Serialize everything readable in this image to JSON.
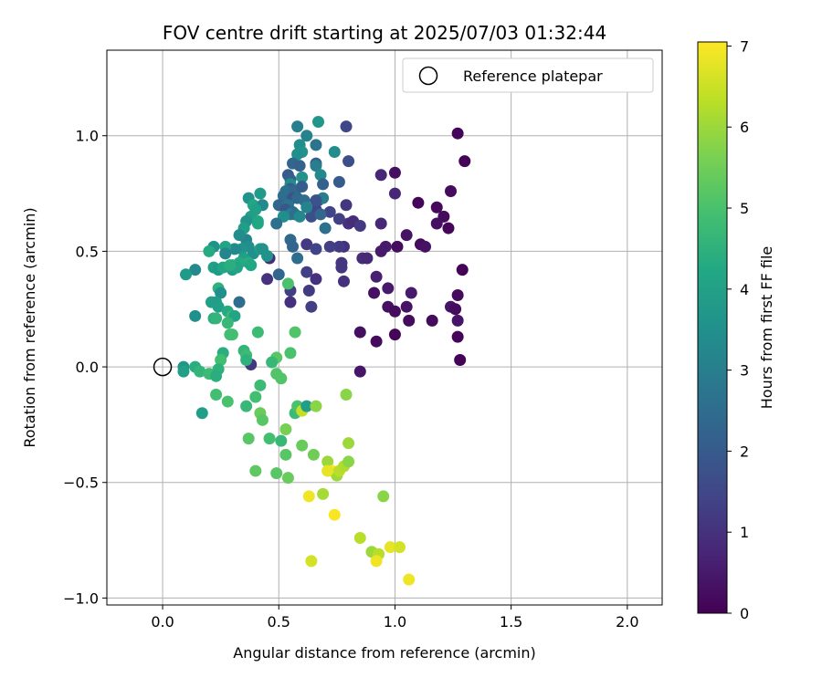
{
  "chart_data": {
    "type": "scatter",
    "title": "FOV centre drift starting at 2025/07/03 01:32:44",
    "xlabel": "Angular distance from reference (arcmin)",
    "ylabel": "Rotation from reference (arcmin)",
    "xlim": [
      -0.24,
      2.15
    ],
    "ylim": [
      -1.03,
      1.37
    ],
    "xticks": [
      0.0,
      0.5,
      1.0,
      1.5,
      2.0
    ],
    "xtick_labels": [
      "0.0",
      "0.5",
      "1.0",
      "1.5",
      "2.0"
    ],
    "yticks": [
      -1.0,
      -0.5,
      0.0,
      0.5,
      1.0
    ],
    "ytick_labels": [
      "−1.0",
      "−0.5",
      "0.0",
      "0.5",
      "1.0"
    ],
    "grid": true,
    "legend": {
      "placement": "top-right",
      "label": "Reference platepar"
    },
    "reference_marker": {
      "x": 0.0,
      "y": 0.0,
      "style": "open-circle"
    },
    "colorbar": {
      "label": "Hours from first FF file",
      "range": [
        0,
        7.05
      ],
      "ticks": [
        0,
        1,
        2,
        3,
        4,
        5,
        6,
        7
      ],
      "tick_labels": [
        "0",
        "1",
        "2",
        "3",
        "4",
        "5",
        "6",
        "7"
      ],
      "colormap": "viridis"
    },
    "points": [
      [
        1.27,
        1.01,
        0.1
      ],
      [
        1.3,
        0.89,
        0.05
      ],
      [
        1.0,
        0.84,
        0.3
      ],
      [
        0.94,
        0.83,
        0.8
      ],
      [
        1.24,
        0.76,
        0.2
      ],
      [
        1.1,
        0.71,
        0.1
      ],
      [
        1.0,
        0.75,
        0.8
      ],
      [
        1.18,
        0.69,
        0.15
      ],
      [
        1.21,
        0.65,
        0.2
      ],
      [
        1.18,
        0.62,
        0.3
      ],
      [
        1.23,
        0.6,
        0.1
      ],
      [
        1.05,
        0.57,
        0.35
      ],
      [
        1.01,
        0.52,
        0.2
      ],
      [
        1.11,
        0.53,
        0.2
      ],
      [
        1.13,
        0.52,
        0.35
      ],
      [
        0.96,
        0.52,
        0.5
      ],
      [
        0.94,
        0.5,
        0.5
      ],
      [
        1.29,
        0.42,
        0.05
      ],
      [
        0.92,
        0.39,
        0.6
      ],
      [
        0.91,
        0.32,
        0.3
      ],
      [
        0.97,
        0.34,
        0.5
      ],
      [
        1.07,
        0.32,
        0.5
      ],
      [
        1.27,
        0.31,
        0.2
      ],
      [
        1.24,
        0.26,
        0.4
      ],
      [
        1.26,
        0.25,
        0.2
      ],
      [
        0.97,
        0.26,
        0.3
      ],
      [
        1.05,
        0.26,
        0.35
      ],
      [
        1.0,
        0.24,
        0.2
      ],
      [
        1.06,
        0.2,
        0.2
      ],
      [
        1.16,
        0.2,
        0.2
      ],
      [
        1.27,
        0.2,
        0.4
      ],
      [
        1.27,
        0.13,
        0.1
      ],
      [
        1.28,
        0.03,
        0.05
      ],
      [
        0.85,
        0.15,
        0.3
      ],
      [
        0.92,
        0.11,
        0.2
      ],
      [
        1.0,
        0.14,
        0.1
      ],
      [
        0.85,
        -0.02,
        0.4
      ],
      [
        0.94,
        0.62,
        0.8
      ],
      [
        0.8,
        0.62,
        1.0
      ],
      [
        0.82,
        0.63,
        0.9
      ],
      [
        0.85,
        0.61,
        1.2
      ],
      [
        0.86,
        0.47,
        0.9
      ],
      [
        0.88,
        0.47,
        0.8
      ],
      [
        0.79,
        0.7,
        1.1
      ],
      [
        0.76,
        0.64,
        1.3
      ],
      [
        0.72,
        0.67,
        1.4
      ],
      [
        0.78,
        0.52,
        1.0
      ],
      [
        0.77,
        0.45,
        1.1
      ],
      [
        0.77,
        0.43,
        1.1
      ],
      [
        0.76,
        0.52,
        1.2
      ],
      [
        0.72,
        0.52,
        1.3
      ],
      [
        0.78,
        0.37,
        1.0
      ],
      [
        0.66,
        0.68,
        1.5
      ],
      [
        0.67,
        0.72,
        1.6
      ],
      [
        0.64,
        0.65,
        1.7
      ],
      [
        0.62,
        0.53,
        1.2
      ],
      [
        0.66,
        0.51,
        1.4
      ],
      [
        0.62,
        0.41,
        1.3
      ],
      [
        0.66,
        0.38,
        1.0
      ],
      [
        0.63,
        0.33,
        1.2
      ],
      [
        0.64,
        0.26,
        1.3
      ],
      [
        0.55,
        0.33,
        1.3
      ],
      [
        0.55,
        0.28,
        1.0
      ],
      [
        0.45,
        0.38,
        1.0
      ],
      [
        0.46,
        0.47,
        0.9
      ],
      [
        0.38,
        0.01,
        1.1
      ],
      [
        0.33,
        0.28,
        2.5
      ],
      [
        0.8,
        0.89,
        1.7
      ],
      [
        0.79,
        1.04,
        1.5
      ],
      [
        0.76,
        0.8,
        2.0
      ],
      [
        0.58,
        1.04,
        3.0
      ],
      [
        0.67,
        1.06,
        3.7
      ],
      [
        0.62,
        1.0,
        3.1
      ],
      [
        0.66,
        0.96,
        2.7
      ],
      [
        0.59,
        0.96,
        3.4
      ],
      [
        0.6,
        0.93,
        3.6
      ],
      [
        0.58,
        0.92,
        3.5
      ],
      [
        0.74,
        0.93,
        3.4
      ],
      [
        0.56,
        0.88,
        2.3
      ],
      [
        0.59,
        0.87,
        2.2
      ],
      [
        0.66,
        0.88,
        2.0
      ],
      [
        0.66,
        0.87,
        3.0
      ],
      [
        0.68,
        0.83,
        3.3
      ],
      [
        0.54,
        0.83,
        2.0
      ],
      [
        0.55,
        0.81,
        2.2
      ],
      [
        0.6,
        0.82,
        3.6
      ],
      [
        0.55,
        0.79,
        3.4
      ],
      [
        0.69,
        0.79,
        2.2
      ],
      [
        0.55,
        0.77,
        2.1
      ],
      [
        0.53,
        0.76,
        2.6
      ],
      [
        0.57,
        0.76,
        2.3
      ],
      [
        0.6,
        0.78,
        2.1
      ],
      [
        0.52,
        0.74,
        2.5
      ],
      [
        0.69,
        0.73,
        3.0
      ],
      [
        0.56,
        0.73,
        1.8
      ],
      [
        0.58,
        0.73,
        2.4
      ],
      [
        0.61,
        0.72,
        2.5
      ],
      [
        0.66,
        0.72,
        1.8
      ],
      [
        0.5,
        0.7,
        2.3
      ],
      [
        0.54,
        0.7,
        2.7
      ],
      [
        0.62,
        0.69,
        3.1
      ],
      [
        0.53,
        0.68,
        1.9
      ],
      [
        0.56,
        0.67,
        2.4
      ],
      [
        0.55,
        0.66,
        3.0
      ],
      [
        0.57,
        0.66,
        2.6
      ],
      [
        0.68,
        0.66,
        2.3
      ],
      [
        0.59,
        0.65,
        3.3
      ],
      [
        0.52,
        0.65,
        3.5
      ],
      [
        0.7,
        0.6,
        2.6
      ],
      [
        0.49,
        0.62,
        2.6
      ],
      [
        0.55,
        0.55,
        2.4
      ],
      [
        0.56,
        0.52,
        2.3
      ],
      [
        0.58,
        0.47,
        2.5
      ],
      [
        0.5,
        0.4,
        2.3
      ],
      [
        0.37,
        0.73,
        3.6
      ],
      [
        0.42,
        0.75,
        3.8
      ],
      [
        0.39,
        0.7,
        4.2
      ],
      [
        0.43,
        0.7,
        3.3
      ],
      [
        0.4,
        0.68,
        4.0
      ],
      [
        0.38,
        0.65,
        3.9
      ],
      [
        0.36,
        0.63,
        3.6
      ],
      [
        0.35,
        0.6,
        3.9
      ],
      [
        0.41,
        0.63,
        4.1
      ],
      [
        0.41,
        0.62,
        4.2
      ],
      [
        0.36,
        0.55,
        3.2
      ],
      [
        0.33,
        0.57,
        3.4
      ],
      [
        0.37,
        0.52,
        3.5
      ],
      [
        0.34,
        0.51,
        3.6
      ],
      [
        0.31,
        0.51,
        3.3
      ],
      [
        0.22,
        0.52,
        3.6
      ],
      [
        0.27,
        0.52,
        4.1
      ],
      [
        0.2,
        0.5,
        4.3
      ],
      [
        0.27,
        0.49,
        3.2
      ],
      [
        0.39,
        0.49,
        3.5
      ],
      [
        0.42,
        0.51,
        3.9
      ],
      [
        0.43,
        0.51,
        3.6
      ],
      [
        0.45,
        0.48,
        3.6
      ],
      [
        0.35,
        0.47,
        4.0
      ],
      [
        0.37,
        0.45,
        4.4
      ],
      [
        0.22,
        0.43,
        4.0
      ],
      [
        0.24,
        0.42,
        3.8
      ],
      [
        0.26,
        0.43,
        4.2
      ],
      [
        0.33,
        0.45,
        4.3
      ],
      [
        0.3,
        0.44,
        4.4
      ],
      [
        0.38,
        0.44,
        4.2
      ],
      [
        0.14,
        0.42,
        3.3
      ],
      [
        0.1,
        0.4,
        3.8
      ],
      [
        0.3,
        0.42,
        3.9
      ],
      [
        0.32,
        0.43,
        4.1
      ],
      [
        0.29,
        0.44,
        4.4
      ],
      [
        0.24,
        0.34,
        4.5
      ],
      [
        0.25,
        0.32,
        3.5
      ],
      [
        0.21,
        0.28,
        4.0
      ],
      [
        0.23,
        0.28,
        3.9
      ],
      [
        0.24,
        0.26,
        4.0
      ],
      [
        0.28,
        0.24,
        4.3
      ],
      [
        0.3,
        0.22,
        4.8
      ],
      [
        0.31,
        0.22,
        4.1
      ],
      [
        0.14,
        0.22,
        3.5
      ],
      [
        0.22,
        0.21,
        4.4
      ],
      [
        0.23,
        0.21,
        4.6
      ],
      [
        0.28,
        0.19,
        4.7
      ],
      [
        0.29,
        0.14,
        4.9
      ],
      [
        0.3,
        0.14,
        4.9
      ],
      [
        0.41,
        0.15,
        4.8
      ],
      [
        0.57,
        0.15,
        5.1
      ],
      [
        0.54,
        0.36,
        5.0
      ],
      [
        0.26,
        0.06,
        4.4
      ],
      [
        0.35,
        0.07,
        4.6
      ],
      [
        0.36,
        0.05,
        4.8
      ],
      [
        0.55,
        0.06,
        5.0
      ],
      [
        0.25,
        0.03,
        4.9
      ],
      [
        0.36,
        0.03,
        4.5
      ],
      [
        0.09,
        0.0,
        3.7
      ],
      [
        0.09,
        -0.02,
        4.0
      ],
      [
        0.14,
        0.0,
        4.4
      ],
      [
        0.16,
        -0.02,
        4.6
      ],
      [
        0.2,
        -0.03,
        4.8
      ],
      [
        0.24,
        -0.01,
        4.5
      ],
      [
        0.23,
        -0.04,
        4.4
      ],
      [
        0.49,
        0.04,
        5.2
      ],
      [
        0.47,
        0.02,
        4.7
      ],
      [
        0.49,
        -0.03,
        5.1
      ],
      [
        0.51,
        -0.05,
        5.1
      ],
      [
        0.42,
        -0.08,
        4.8
      ],
      [
        0.23,
        -0.12,
        4.9
      ],
      [
        0.28,
        -0.15,
        5.0
      ],
      [
        0.36,
        -0.17,
        4.7
      ],
      [
        0.4,
        -0.13,
        4.9
      ],
      [
        0.42,
        -0.2,
        5.4
      ],
      [
        0.43,
        -0.23,
        5.2
      ],
      [
        0.17,
        -0.2,
        3.9
      ],
      [
        0.57,
        -0.2,
        4.8
      ],
      [
        0.58,
        -0.17,
        5.0
      ],
      [
        0.6,
        -0.19,
        6.4
      ],
      [
        0.62,
        -0.17,
        3.9
      ],
      [
        0.66,
        -0.17,
        5.8
      ],
      [
        0.79,
        -0.12,
        5.8
      ],
      [
        0.53,
        -0.27,
        5.6
      ],
      [
        0.37,
        -0.31,
        5.2
      ],
      [
        0.46,
        -0.31,
        4.9
      ],
      [
        0.51,
        -0.32,
        4.7
      ],
      [
        0.53,
        -0.38,
        5.2
      ],
      [
        0.6,
        -0.34,
        5.4
      ],
      [
        0.65,
        -0.38,
        5.5
      ],
      [
        0.8,
        -0.33,
        6.0
      ],
      [
        0.4,
        -0.45,
        5.3
      ],
      [
        0.49,
        -0.46,
        5.2
      ],
      [
        0.54,
        -0.48,
        5.4
      ],
      [
        0.71,
        -0.41,
        6.0
      ],
      [
        0.73,
        -0.45,
        7.0
      ],
      [
        0.75,
        -0.46,
        6.2
      ],
      [
        0.75,
        -0.47,
        6.0
      ],
      [
        0.76,
        -0.45,
        6.3
      ],
      [
        0.78,
        -0.43,
        6.2
      ],
      [
        0.8,
        -0.41,
        5.8
      ],
      [
        0.71,
        -0.45,
        6.8
      ],
      [
        0.63,
        -0.56,
        6.9
      ],
      [
        0.69,
        -0.55,
        6.1
      ],
      [
        0.74,
        -0.64,
        7.0
      ],
      [
        0.95,
        -0.56,
        5.8
      ],
      [
        0.85,
        -0.74,
        6.3
      ],
      [
        0.9,
        -0.8,
        6.0
      ],
      [
        0.93,
        -0.81,
        6.3
      ],
      [
        0.92,
        -0.84,
        6.9
      ],
      [
        0.98,
        -0.78,
        6.8
      ],
      [
        1.02,
        -0.78,
        6.6
      ],
      [
        0.64,
        -0.84,
        6.6
      ],
      [
        1.06,
        -0.92,
        6.9
      ]
    ]
  }
}
